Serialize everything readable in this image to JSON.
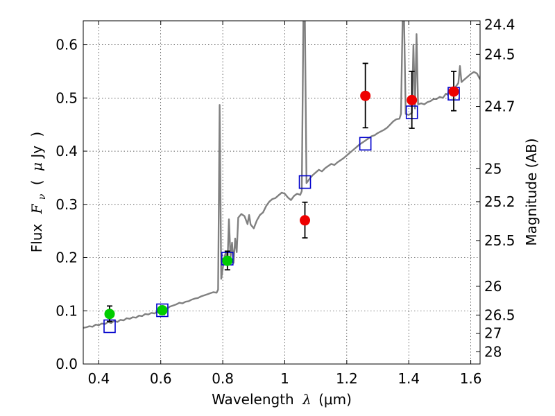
{
  "chart_data": {
    "type": "scatter",
    "xlabel": "Wavelength  λ (μm)",
    "ylabel": "Flux  Fν ( μJy )",
    "ylabel_parts": {
      "prefix": "Flux",
      "symbol": "F",
      "subscript": "ν",
      "unit_open": "(",
      "unit_mu": "μ",
      "unit": "Jy",
      "unit_close": ")"
    },
    "xlabel_parts": {
      "prefix": "Wavelength",
      "symbol": "λ",
      "unit": "(μm)"
    },
    "y2label": "Magnitude (AB)",
    "xlim": [
      0.35,
      1.63
    ],
    "ylim": [
      0.0,
      0.645
    ],
    "grid": true,
    "x_ticks": [
      {
        "value": 0.4,
        "label": "0.4"
      },
      {
        "value": 0.6,
        "label": "0.6"
      },
      {
        "value": 0.8,
        "label": "0.8"
      },
      {
        "value": 1.0,
        "label": "1"
      },
      {
        "value": 1.2,
        "label": "1.2"
      },
      {
        "value": 1.4,
        "label": "1.4"
      },
      {
        "value": 1.6,
        "label": "1.6"
      }
    ],
    "y_ticks": [
      {
        "value": 0.0,
        "label": "0.0"
      },
      {
        "value": 0.1,
        "label": "0.1"
      },
      {
        "value": 0.2,
        "label": "0.2"
      },
      {
        "value": 0.3,
        "label": "0.3"
      },
      {
        "value": 0.4,
        "label": "0.4"
      },
      {
        "value": 0.5,
        "label": "0.5"
      },
      {
        "value": 0.6,
        "label": "0.6"
      }
    ],
    "mag_ticks": [
      {
        "label": "24.4",
        "flux": 0.638
      },
      {
        "label": "24.5",
        "flux": 0.582
      },
      {
        "label": "24.7",
        "flux": 0.484
      },
      {
        "label": "25",
        "flux": 0.367
      },
      {
        "label": "25.2",
        "flux": 0.305
      },
      {
        "label": "25.5",
        "flux": 0.232
      },
      {
        "label": "26",
        "flux": 0.146
      },
      {
        "label": "26.5",
        "flux": 0.092
      },
      {
        "label": "27",
        "flux": 0.058
      },
      {
        "label": "28",
        "flux": 0.023
      }
    ],
    "series": [
      {
        "name": "Model spectrum",
        "style": "line",
        "color": "#808080",
        "points": [
          [
            0.35,
            0.068
          ],
          [
            0.36,
            0.069
          ],
          [
            0.37,
            0.071
          ],
          [
            0.38,
            0.07
          ],
          [
            0.39,
            0.074
          ],
          [
            0.4,
            0.073
          ],
          [
            0.41,
            0.076
          ],
          [
            0.42,
            0.075
          ],
          [
            0.43,
            0.079
          ],
          [
            0.44,
            0.077
          ],
          [
            0.45,
            0.081
          ],
          [
            0.46,
            0.079
          ],
          [
            0.47,
            0.083
          ],
          [
            0.48,
            0.082
          ],
          [
            0.49,
            0.086
          ],
          [
            0.5,
            0.085
          ],
          [
            0.51,
            0.088
          ],
          [
            0.52,
            0.087
          ],
          [
            0.53,
            0.091
          ],
          [
            0.54,
            0.09
          ],
          [
            0.55,
            0.094
          ],
          [
            0.56,
            0.093
          ],
          [
            0.57,
            0.096
          ],
          [
            0.58,
            0.095
          ],
          [
            0.59,
            0.099
          ],
          [
            0.6,
            0.098
          ],
          [
            0.61,
            0.101
          ],
          [
            0.62,
            0.104
          ],
          [
            0.63,
            0.108
          ],
          [
            0.64,
            0.11
          ],
          [
            0.65,
            0.112
          ],
          [
            0.66,
            0.115
          ],
          [
            0.67,
            0.114
          ],
          [
            0.68,
            0.117
          ],
          [
            0.69,
            0.118
          ],
          [
            0.7,
            0.121
          ],
          [
            0.71,
            0.123
          ],
          [
            0.72,
            0.124
          ],
          [
            0.73,
            0.127
          ],
          [
            0.74,
            0.129
          ],
          [
            0.75,
            0.131
          ],
          [
            0.76,
            0.133
          ],
          [
            0.77,
            0.135
          ],
          [
            0.78,
            0.134
          ],
          [
            0.785,
            0.14
          ],
          [
            0.79,
            0.487
          ],
          [
            0.795,
            0.16
          ],
          [
            0.8,
            0.18
          ],
          [
            0.805,
            0.2
          ],
          [
            0.81,
            0.21
          ],
          [
            0.815,
            0.185
          ],
          [
            0.82,
            0.272
          ],
          [
            0.825,
            0.2
          ],
          [
            0.83,
            0.228
          ],
          [
            0.835,
            0.19
          ],
          [
            0.84,
            0.236
          ],
          [
            0.845,
            0.21
          ],
          [
            0.85,
            0.275
          ],
          [
            0.86,
            0.282
          ],
          [
            0.87,
            0.278
          ],
          [
            0.88,
            0.263
          ],
          [
            0.885,
            0.28
          ],
          [
            0.89,
            0.262
          ],
          [
            0.9,
            0.255
          ],
          [
            0.91,
            0.27
          ],
          [
            0.92,
            0.28
          ],
          [
            0.93,
            0.285
          ],
          [
            0.94,
            0.297
          ],
          [
            0.95,
            0.305
          ],
          [
            0.96,
            0.31
          ],
          [
            0.97,
            0.312
          ],
          [
            0.98,
            0.317
          ],
          [
            0.99,
            0.322
          ],
          [
            1.0,
            0.32
          ],
          [
            1.01,
            0.313
          ],
          [
            1.02,
            0.308
          ],
          [
            1.03,
            0.316
          ],
          [
            1.04,
            0.32
          ],
          [
            1.05,
            0.318
          ],
          [
            1.055,
            0.325
          ],
          [
            1.06,
            0.645
          ],
          [
            1.065,
            0.645
          ],
          [
            1.07,
            0.34
          ],
          [
            1.08,
            0.348
          ],
          [
            1.09,
            0.355
          ],
          [
            1.1,
            0.36
          ],
          [
            1.11,
            0.365
          ],
          [
            1.12,
            0.362
          ],
          [
            1.13,
            0.368
          ],
          [
            1.14,
            0.372
          ],
          [
            1.15,
            0.376
          ],
          [
            1.16,
            0.374
          ],
          [
            1.17,
            0.379
          ],
          [
            1.18,
            0.383
          ],
          [
            1.19,
            0.387
          ],
          [
            1.2,
            0.392
          ],
          [
            1.21,
            0.397
          ],
          [
            1.22,
            0.402
          ],
          [
            1.23,
            0.407
          ],
          [
            1.24,
            0.412
          ],
          [
            1.25,
            0.416
          ],
          [
            1.26,
            0.42
          ],
          [
            1.27,
            0.424
          ],
          [
            1.28,
            0.428
          ],
          [
            1.29,
            0.43
          ],
          [
            1.3,
            0.434
          ],
          [
            1.31,
            0.437
          ],
          [
            1.32,
            0.44
          ],
          [
            1.33,
            0.444
          ],
          [
            1.34,
            0.45
          ],
          [
            1.35,
            0.456
          ],
          [
            1.36,
            0.46
          ],
          [
            1.37,
            0.461
          ],
          [
            1.375,
            0.47
          ],
          [
            1.38,
            0.645
          ],
          [
            1.385,
            0.645
          ],
          [
            1.39,
            0.47
          ],
          [
            1.4,
            0.468
          ],
          [
            1.41,
            0.472
          ],
          [
            1.415,
            0.6
          ],
          [
            1.42,
            0.48
          ],
          [
            1.425,
            0.62
          ],
          [
            1.43,
            0.488
          ],
          [
            1.44,
            0.49
          ],
          [
            1.45,
            0.488
          ],
          [
            1.46,
            0.492
          ],
          [
            1.47,
            0.494
          ],
          [
            1.48,
            0.498
          ],
          [
            1.49,
            0.498
          ],
          [
            1.5,
            0.502
          ],
          [
            1.51,
            0.5
          ],
          [
            1.52,
            0.508
          ],
          [
            1.525,
            0.506
          ],
          [
            1.53,
            0.515
          ],
          [
            1.54,
            0.512
          ],
          [
            1.55,
            0.52
          ],
          [
            1.56,
            0.528
          ],
          [
            1.565,
            0.56
          ],
          [
            1.57,
            0.53
          ],
          [
            1.58,
            0.535
          ],
          [
            1.59,
            0.54
          ],
          [
            1.6,
            0.545
          ],
          [
            1.61,
            0.549
          ],
          [
            1.62,
            0.546
          ],
          [
            1.63,
            0.535
          ]
        ]
      },
      {
        "name": "Model band fluxes",
        "style": "open-square",
        "color": "#0000cc",
        "points": [
          [
            0.435,
            0.071
          ],
          [
            0.605,
            0.101
          ],
          [
            0.815,
            0.198
          ],
          [
            1.065,
            0.342
          ],
          [
            1.26,
            0.414
          ],
          [
            1.41,
            0.473
          ],
          [
            1.545,
            0.508
          ]
        ]
      },
      {
        "name": "Observed (green)",
        "style": "filled-circle",
        "color": "#00cc00",
        "points": [
          {
            "x": 0.435,
            "y": 0.094,
            "ylo": 0.08,
            "yhi": 0.109
          },
          {
            "x": 0.605,
            "y": 0.101,
            "ylo": 0.093,
            "yhi": 0.108
          },
          {
            "x": 0.815,
            "y": 0.194,
            "ylo": 0.177,
            "yhi": 0.212
          }
        ]
      },
      {
        "name": "Observed (red)",
        "style": "filled-circle",
        "color": "#ee0000",
        "points": [
          {
            "x": 1.065,
            "y": 0.27,
            "ylo": 0.237,
            "yhi": 0.304
          },
          {
            "x": 1.26,
            "y": 0.504,
            "ylo": 0.444,
            "yhi": 0.565
          },
          {
            "x": 1.41,
            "y": 0.496,
            "ylo": 0.443,
            "yhi": 0.55
          },
          {
            "x": 1.545,
            "y": 0.512,
            "ylo": 0.476,
            "yhi": 0.55
          }
        ]
      }
    ]
  }
}
